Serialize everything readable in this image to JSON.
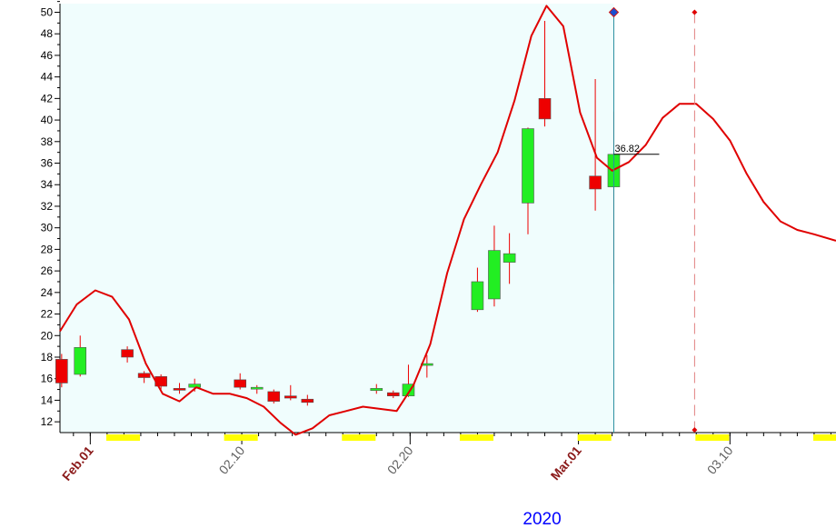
{
  "chart_data": {
    "type": "candlestick",
    "y_ticks": [
      12,
      14,
      16,
      18,
      20,
      22,
      24,
      26,
      28,
      30,
      32,
      34,
      36,
      38,
      40,
      42,
      44,
      46,
      48,
      50
    ],
    "ylim": [
      11,
      50.8
    ],
    "x_axis": {
      "year_label": "2020",
      "major_labels": [
        {
          "text": "Feb.01",
          "day": 0,
          "style": "month"
        },
        {
          "text": "02.10",
          "day": 9,
          "style": "day"
        },
        {
          "text": "02.20",
          "day": 19,
          "style": "day"
        },
        {
          "text": "Mar.01",
          "day": 29,
          "style": "month"
        },
        {
          "text": "03.10",
          "day": 38,
          "style": "day"
        }
      ],
      "weekend_markers": [
        1,
        8,
        15,
        22,
        29,
        36,
        43
      ],
      "day_range": [
        -1.8,
        44.3
      ]
    },
    "candles": [
      {
        "day": -1.7,
        "open": 17.8,
        "high": 18.3,
        "low": 15.2,
        "close": 15.6
      },
      {
        "day": -0.6,
        "open": 16.4,
        "high": 20.0,
        "low": 16.2,
        "close": 18.9
      },
      {
        "day": 2.2,
        "open": 18.7,
        "high": 19.0,
        "low": 17.5,
        "close": 18.0
      },
      {
        "day": 3.2,
        "open": 16.5,
        "high": 16.7,
        "low": 15.6,
        "close": 16.1
      },
      {
        "day": 4.2,
        "open": 16.2,
        "high": 16.4,
        "low": 15.0,
        "close": 15.3
      },
      {
        "day": 5.3,
        "open": 15.1,
        "high": 15.6,
        "low": 14.6,
        "close": 15.0
      },
      {
        "day": 6.2,
        "open": 15.2,
        "high": 16.0,
        "low": 14.8,
        "close": 15.5
      },
      {
        "day": 8.9,
        "open": 15.9,
        "high": 16.5,
        "low": 15.0,
        "close": 15.2
      },
      {
        "day": 9.9,
        "open": 15.1,
        "high": 15.4,
        "low": 14.6,
        "close": 15.2
      },
      {
        "day": 10.9,
        "open": 14.8,
        "high": 15.0,
        "low": 13.7,
        "close": 13.9
      },
      {
        "day": 11.9,
        "open": 14.4,
        "high": 15.4,
        "low": 14.0,
        "close": 14.2
      },
      {
        "day": 12.9,
        "open": 14.1,
        "high": 14.5,
        "low": 13.5,
        "close": 13.8
      },
      {
        "day": 17.0,
        "open": 14.9,
        "high": 15.5,
        "low": 14.6,
        "close": 15.1
      },
      {
        "day": 18.0,
        "open": 14.7,
        "high": 14.9,
        "low": 14.2,
        "close": 14.4
      },
      {
        "day": 18.9,
        "open": 14.4,
        "high": 17.3,
        "low": 14.3,
        "close": 15.5
      },
      {
        "day": 20.0,
        "open": 17.3,
        "high": 18.2,
        "low": 16.1,
        "close": 17.4
      },
      {
        "day": 23.0,
        "open": 22.4,
        "high": 26.3,
        "low": 22.2,
        "close": 25.0
      },
      {
        "day": 24.0,
        "open": 23.4,
        "high": 30.2,
        "low": 22.7,
        "close": 27.9
      },
      {
        "day": 24.9,
        "open": 26.8,
        "high": 29.5,
        "low": 24.8,
        "close": 27.6
      },
      {
        "day": 26.0,
        "open": 32.3,
        "high": 39.3,
        "low": 29.4,
        "close": 39.2
      },
      {
        "day": 27.0,
        "open": 42.0,
        "high": 49.2,
        "low": 39.4,
        "close": 40.1
      },
      {
        "day": 30.0,
        "open": 34.8,
        "high": 43.8,
        "low": 31.6,
        "close": 33.6
      },
      {
        "day": 31.1,
        "open": 33.8,
        "high": 40.8,
        "low": 24.8,
        "close": 36.82
      }
    ],
    "last_value_label": "36.82",
    "cursor_day": 31.1,
    "future_cursor_day": 35.9,
    "indicator_line": [
      [
        -1.8,
        20.4
      ],
      [
        -0.8,
        22.9
      ],
      [
        0.3,
        24.2
      ],
      [
        1.3,
        23.6
      ],
      [
        2.3,
        21.5
      ],
      [
        3.3,
        17.4
      ],
      [
        4.3,
        14.6
      ],
      [
        5.3,
        13.9
      ],
      [
        6.3,
        15.2
      ],
      [
        7.3,
        14.6
      ],
      [
        8.3,
        14.6
      ],
      [
        9.3,
        14.2
      ],
      [
        10.3,
        13.4
      ],
      [
        11.3,
        11.9
      ],
      [
        12.2,
        10.8
      ],
      [
        13.2,
        11.4
      ],
      [
        14.2,
        12.6
      ],
      [
        15.2,
        13.0
      ],
      [
        16.2,
        13.4
      ],
      [
        17.2,
        13.2
      ],
      [
        18.2,
        13.0
      ],
      [
        19.2,
        15.4
      ],
      [
        20.2,
        19.2
      ],
      [
        21.2,
        25.8
      ],
      [
        22.2,
        30.8
      ],
      [
        23.2,
        34.0
      ],
      [
        24.2,
        37.0
      ],
      [
        25.2,
        41.8
      ],
      [
        26.2,
        47.8
      ],
      [
        27.1,
        50.6
      ],
      [
        28.1,
        48.7
      ],
      [
        29.1,
        40.7
      ],
      [
        30.1,
        36.5
      ],
      [
        31.0,
        35.3
      ],
      [
        32.0,
        36.1
      ],
      [
        33.0,
        37.7
      ],
      [
        34.0,
        40.2
      ],
      [
        35.0,
        41.5
      ],
      [
        36.0,
        41.5
      ],
      [
        37.0,
        40.1
      ],
      [
        38.0,
        38.1
      ],
      [
        39.0,
        35.0
      ],
      [
        40.0,
        32.4
      ],
      [
        41.0,
        30.6
      ],
      [
        42.0,
        29.8
      ],
      [
        43.0,
        29.4
      ],
      [
        44.3,
        28.8
      ]
    ],
    "colors": {
      "background_past": "#f0fdfd",
      "background_future": "#ffffff",
      "up_candle": "#22ee22",
      "down_candle": "#ee0000",
      "indicator_line": "#e00000",
      "cursor_line": "#2a8fa0",
      "future_cursor_line": "#e08080",
      "weekend_marker": "#ffff00",
      "month_label": "#8b1a1a",
      "day_label": "#606060",
      "year_label": "#0000ff"
    }
  }
}
